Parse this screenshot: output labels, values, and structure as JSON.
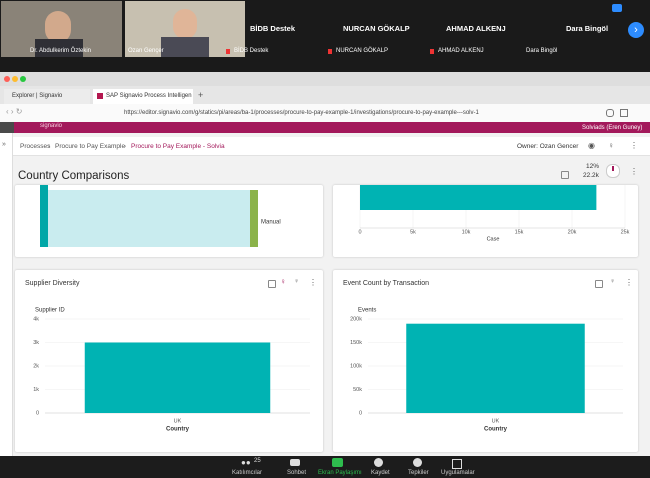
{
  "meeting": {
    "participants": [
      "Dr. Abdulkerim Öztekin",
      "Ozan Gençer",
      "BİDB Destek",
      "NURCAN GÖKALP",
      "AHMAD ALKENJ",
      "Dara Bingöl"
    ],
    "toolbar": {
      "count": "25",
      "items": [
        "Katılımcılar",
        "Sohbet",
        "Ekran Paylaşımı",
        "Kaydet",
        "Tepkiler",
        "Uygulamalar"
      ]
    }
  },
  "browser": {
    "tabs": [
      "Explorer | Signavio",
      "SAP Signavio Process Intelligen"
    ],
    "url": "https://editor.signavio.com/g/statics/pi/areas/ba-1/processes/procure-to-pay-example-1/investigations/procure-to-pay-example---solv-1"
  },
  "app": {
    "logo": "signavio",
    "user": "Solviads (Eren Guney)",
    "breadcrumb": [
      "Processes",
      "Procure to Pay Example",
      "Procure to Pay Example - Solvia"
    ],
    "owner": "Owner: Ozan Gencer",
    "title": "Country Comparisons",
    "stats": [
      "12%",
      "22.2k"
    ],
    "sankey_label": "Manual"
  },
  "chart_data": [
    {
      "type": "bar",
      "orientation": "horizontal",
      "categories": [
        null
      ],
      "values": [
        22300
      ],
      "color": "#00b3b3",
      "xlim": [
        0,
        25000
      ],
      "xticks": [
        0,
        {
          "value": 5000,
          "label": "5k"
        },
        {
          "value": 10000,
          "label": "10k"
        },
        {
          "value": 15000,
          "label": "15k"
        },
        {
          "value": 20000,
          "label": "20k"
        },
        {
          "value": 25000,
          "label": "25k"
        }
      ],
      "xlabel": "Case",
      "grid": true
    },
    {
      "type": "bar",
      "title": "Supplier Diversity",
      "ylabel": "Supplier ID",
      "xlabel": "Country",
      "categories": [
        "UK"
      ],
      "values": [
        3000
      ],
      "color": "#00b3b3",
      "ylim": [
        0,
        4000
      ],
      "yticks": [
        0,
        {
          "value": 1000,
          "label": "1k"
        },
        {
          "value": 2000,
          "label": "2k"
        },
        {
          "value": 3000,
          "label": "3k"
        },
        {
          "value": 4000,
          "label": "4k"
        }
      ],
      "grid": true
    },
    {
      "type": "bar",
      "title": "Event Count by Transaction",
      "ylabel": "Events",
      "xlabel": "Country",
      "categories": [
        "UK"
      ],
      "values": [
        190000
      ],
      "color": "#00b3b3",
      "ylim": [
        0,
        200000
      ],
      "yticks": [
        0,
        {
          "value": 50000,
          "label": "50k"
        },
        {
          "value": 100000,
          "label": "100k"
        },
        {
          "value": 150000,
          "label": "150k"
        },
        {
          "value": 200000,
          "label": "200k"
        }
      ],
      "grid": true
    }
  ]
}
